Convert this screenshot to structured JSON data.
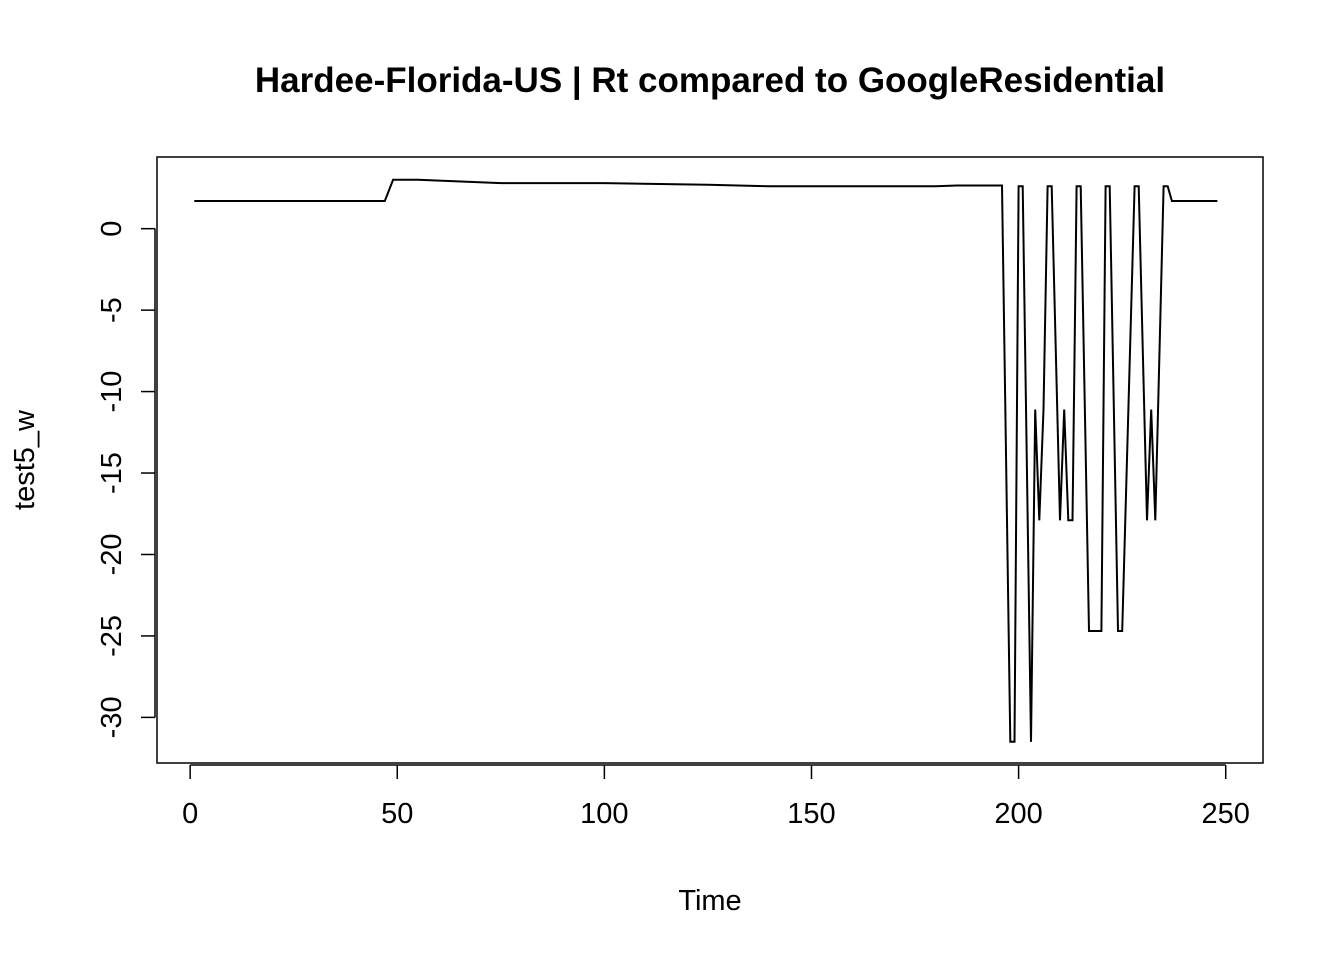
{
  "chart_data": {
    "type": "line",
    "title": "Hardee-Florida-US | Rt compared to GoogleResidential",
    "xlabel": "Time",
    "ylabel": "test5_w",
    "xlim": [
      -8,
      259
    ],
    "ylim": [
      -32.8,
      4.4
    ],
    "x_ticks": [
      0,
      50,
      100,
      150,
      200,
      250
    ],
    "y_ticks": [
      0,
      -5,
      -10,
      -15,
      -20,
      -25,
      -30
    ],
    "grid": false,
    "legend": "none",
    "line_color": "#000000",
    "series": [
      {
        "points": [
          [
            1,
            1.7
          ],
          [
            47,
            1.7
          ],
          [
            49,
            3.0
          ],
          [
            55,
            3.0
          ],
          [
            75,
            2.8
          ],
          [
            100,
            2.8
          ],
          [
            125,
            2.7
          ],
          [
            140,
            2.6
          ],
          [
            165,
            2.6
          ],
          [
            180,
            2.6
          ],
          [
            185,
            2.65
          ],
          [
            196,
            2.65
          ],
          [
            198,
            -31.5
          ],
          [
            199,
            -31.5
          ],
          [
            200,
            2.6
          ],
          [
            201,
            2.6
          ],
          [
            203,
            -31.5
          ],
          [
            204,
            -11.1
          ],
          [
            205,
            -17.9
          ],
          [
            206,
            -11.1
          ],
          [
            207,
            2.6
          ],
          [
            208,
            2.6
          ],
          [
            210,
            -17.9
          ],
          [
            211,
            -11.1
          ],
          [
            212,
            -17.9
          ],
          [
            213,
            -17.9
          ],
          [
            214,
            2.6
          ],
          [
            215,
            2.6
          ],
          [
            217,
            -24.7
          ],
          [
            220,
            -24.7
          ],
          [
            221,
            2.6
          ],
          [
            222,
            2.6
          ],
          [
            224,
            -24.7
          ],
          [
            225,
            -24.7
          ],
          [
            228,
            2.6
          ],
          [
            229,
            2.6
          ],
          [
            231,
            -17.9
          ],
          [
            232,
            -11.1
          ],
          [
            233,
            -17.9
          ],
          [
            235,
            2.6
          ],
          [
            236,
            2.6
          ],
          [
            237,
            1.7
          ],
          [
            248,
            1.7
          ]
        ]
      }
    ]
  }
}
